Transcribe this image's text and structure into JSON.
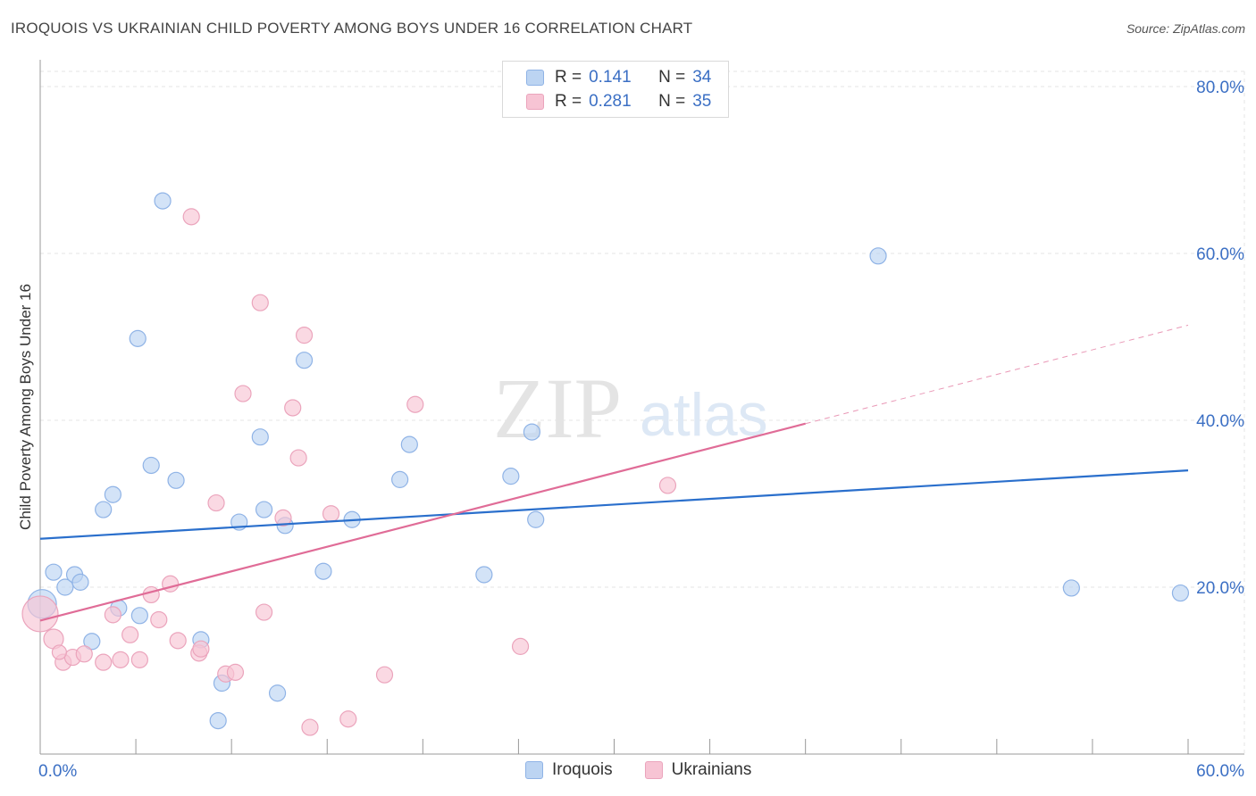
{
  "title": "IROQUOIS VS UKRAINIAN CHILD POVERTY AMONG BOYS UNDER 16 CORRELATION CHART",
  "source": "Source: ZipAtlas.com",
  "watermark": {
    "zip": "ZIP",
    "atlas": "atlas"
  },
  "legend": {
    "r_label": "R =",
    "n_label": "N =",
    "rows": [
      {
        "r": "0.141",
        "n": "34"
      },
      {
        "r": "0.281",
        "n": "35"
      }
    ]
  },
  "bottom_legend": [
    "Iroquois",
    "Ukrainians"
  ],
  "colors": {
    "iroquois_fill": "#bcd4f2",
    "iroquois_stroke": "#8fb3e6",
    "iroquois_line": "#2a6fcc",
    "ukrainians_fill": "#f7c4d4",
    "ukrainians_stroke": "#eba4bc",
    "ukrainians_line": "#e06c97",
    "tick_label": "#3b6fc4",
    "grid": "#e6e6e6",
    "axis": "#999999"
  },
  "chart_data": {
    "type": "scatter",
    "xlabel": "",
    "ylabel": "Child Poverty Among Boys Under 16",
    "xlim": [
      0,
      60
    ],
    "ylim": [
      0,
      80
    ],
    "x_tick_labels": [
      {
        "value": 0,
        "label": "0.0%"
      },
      {
        "value": 60,
        "label": "60.0%"
      }
    ],
    "y_tick_labels": [
      {
        "value": 20,
        "label": "20.0%"
      },
      {
        "value": 40,
        "label": "40.0%"
      },
      {
        "value": 60,
        "label": "60.0%"
      },
      {
        "value": 80,
        "label": "80.0%"
      }
    ],
    "grid": true,
    "series": [
      {
        "name": "Iroquois",
        "r": 0.141,
        "n": 34,
        "trend": {
          "x0": 0,
          "y0": 25.8,
          "x1": 60,
          "y1": 34.0,
          "solid_to": 60
        },
        "points": [
          [
            0.1,
            18.0,
            16
          ],
          [
            0.7,
            21.8,
            9
          ],
          [
            1.3,
            20.0,
            9
          ],
          [
            1.8,
            21.5,
            9
          ],
          [
            2.1,
            20.6,
            9
          ],
          [
            2.7,
            13.5,
            9
          ],
          [
            3.3,
            29.3,
            9
          ],
          [
            3.8,
            31.1,
            9
          ],
          [
            4.1,
            17.5,
            9
          ],
          [
            5.1,
            49.8,
            9
          ],
          [
            5.2,
            16.6,
            9
          ],
          [
            5.8,
            34.6,
            9
          ],
          [
            6.4,
            66.3,
            9
          ],
          [
            7.1,
            32.8,
            9
          ],
          [
            8.4,
            13.7,
            9
          ],
          [
            9.3,
            4.0,
            9
          ],
          [
            9.5,
            8.5,
            9
          ],
          [
            10.4,
            27.8,
            9
          ],
          [
            11.5,
            38.0,
            9
          ],
          [
            11.7,
            29.3,
            9
          ],
          [
            12.4,
            7.3,
            9
          ],
          [
            12.8,
            27.4,
            9
          ],
          [
            13.8,
            47.2,
            9
          ],
          [
            14.8,
            21.9,
            9
          ],
          [
            16.3,
            28.1,
            9
          ],
          [
            18.8,
            32.9,
            9
          ],
          [
            19.3,
            37.1,
            9
          ],
          [
            23.2,
            21.5,
            9
          ],
          [
            24.6,
            33.3,
            9
          ],
          [
            25.7,
            38.6,
            9
          ],
          [
            25.9,
            28.1,
            9
          ],
          [
            43.8,
            59.7,
            9
          ],
          [
            53.9,
            19.9,
            9
          ],
          [
            59.6,
            19.3,
            9
          ]
        ]
      },
      {
        "name": "Ukrainians",
        "r": 0.281,
        "n": 35,
        "trend": {
          "x0": 0,
          "y0": 16.0,
          "x1": 60,
          "y1": 51.4,
          "solid_to": 40
        },
        "points": [
          [
            0.0,
            16.8,
            20
          ],
          [
            0.7,
            13.8,
            11
          ],
          [
            1.2,
            11.0,
            9
          ],
          [
            1.7,
            11.6,
            9
          ],
          [
            2.3,
            12.0,
            9
          ],
          [
            3.3,
            11.0,
            9
          ],
          [
            3.8,
            16.7,
            9
          ],
          [
            4.2,
            11.3,
            9
          ],
          [
            4.7,
            14.3,
            9
          ],
          [
            5.2,
            11.3,
            9
          ],
          [
            5.8,
            19.1,
            9
          ],
          [
            6.2,
            16.1,
            9
          ],
          [
            6.8,
            20.4,
            9
          ],
          [
            7.2,
            13.6,
            9
          ],
          [
            7.9,
            64.4,
            9
          ],
          [
            8.3,
            12.1,
            9
          ],
          [
            8.4,
            12.6,
            9
          ],
          [
            9.2,
            30.1,
            9
          ],
          [
            9.7,
            9.6,
            9
          ],
          [
            10.2,
            9.8,
            9
          ],
          [
            10.6,
            43.2,
            9
          ],
          [
            11.5,
            54.1,
            9
          ],
          [
            11.7,
            17.0,
            9
          ],
          [
            12.7,
            28.3,
            9
          ],
          [
            13.2,
            41.5,
            9
          ],
          [
            13.5,
            35.5,
            9
          ],
          [
            13.8,
            50.2,
            9
          ],
          [
            14.1,
            3.2,
            9
          ],
          [
            15.2,
            28.8,
            9
          ],
          [
            16.1,
            4.2,
            9
          ],
          [
            18.0,
            9.5,
            9
          ],
          [
            19.6,
            41.9,
            9
          ],
          [
            25.1,
            12.9,
            9
          ],
          [
            32.8,
            32.2,
            9
          ],
          [
            1.0,
            12.2,
            8
          ]
        ]
      }
    ]
  }
}
